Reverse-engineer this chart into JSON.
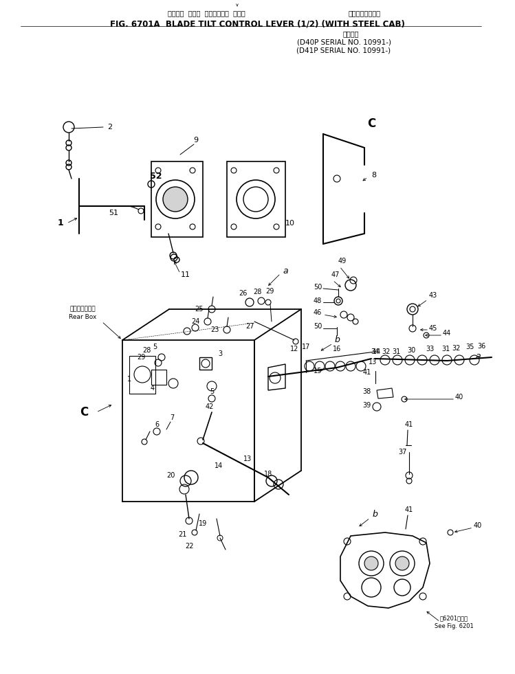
{
  "title_jp_1": "ブレード  チルト  コントロール  レバー",
  "title_jp_2": "スチールキャブ付",
  "title_en": "FIG. 6701A  BLADE TILT CONTROL LEVER (1/2) (WITH STEEL CAB)",
  "subtitle_jp": "適用号機",
  "subtitle_line1": "(D40P SERIAL NO. 10991-)",
  "subtitle_line2": "(D41P SERIAL NO. 10991-)",
  "bg_color": "#ffffff",
  "line_color": "#000000",
  "fig_width": 7.49,
  "fig_height": 9.81,
  "dpi": 100
}
